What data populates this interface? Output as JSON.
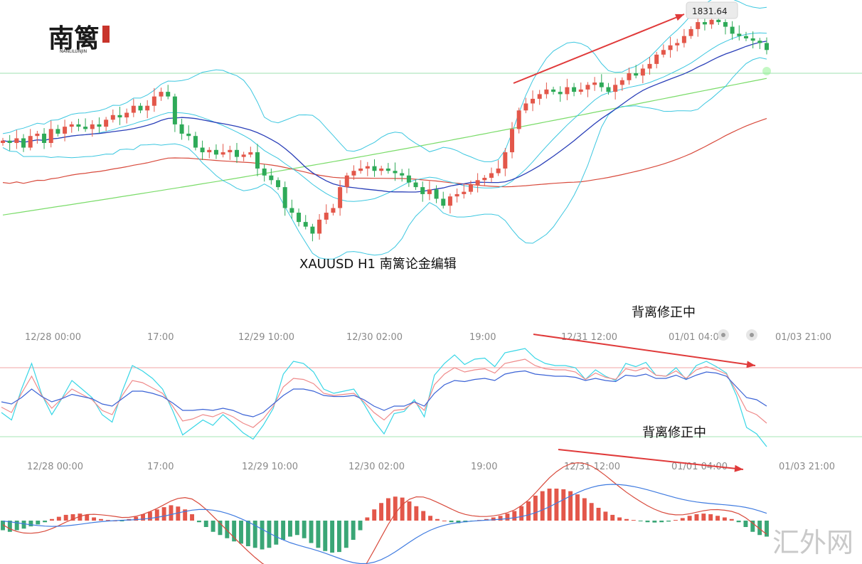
{
  "logo": {
    "mark": "南篱",
    "subtitle": "NANLILUNJIN"
  },
  "chart_title": "XAUUSD  H1  南篱论金编辑",
  "price_marker": "1831.64",
  "notes": {
    "rsi": "背离修正中",
    "macd": "背离修正中"
  },
  "watermark": "汇外网",
  "time_axis_rsi": [
    "12/28 00:00",
    "17:00",
    "12/29 10:00",
    "12/30 02:00",
    "19:00",
    "12/31 12:00",
    "01/01 04:00",
    "01/03 21:00"
  ],
  "time_axis_macd": [
    "12/28 00:00",
    "17:00",
    "12/29 10:00",
    "12/30 02:00",
    "19:00",
    "12/31 12:00",
    "01/01 04:00",
    "01/03 21:00"
  ],
  "colors": {
    "up": "#e3574a",
    "down": "#2eaa58",
    "boll": "#3cc7e0",
    "ma_blue": "#2a3fb8",
    "ma_red": "#d84a3c",
    "ma_green": "#7bdc6a",
    "hline": "#9fe0b2",
    "arrow": "#e03a3a",
    "macd_pos": "#e3574a",
    "macd_neg": "#3aa676",
    "rsi_cyan": "#37d6e6",
    "rsi_red": "#ef8a8a",
    "rsi_blue": "#3b63d6"
  },
  "chart_data": [
    {
      "type": "candlestick",
      "symbol": "XAUUSD",
      "timeframe": "H1",
      "annotation_price": 1831.64,
      "overlays": [
        "Bollinger Bands",
        "MA (blue)",
        "MA (red)",
        "MA (green)"
      ],
      "closes": [
        0.67,
        0.66,
        0.68,
        0.64,
        0.69,
        0.7,
        0.66,
        0.72,
        0.7,
        0.73,
        0.74,
        0.73,
        0.72,
        0.74,
        0.73,
        0.76,
        0.78,
        0.77,
        0.79,
        0.82,
        0.8,
        0.82,
        0.86,
        0.88,
        0.86,
        0.74,
        0.7,
        0.69,
        0.64,
        0.62,
        0.63,
        0.61,
        0.62,
        0.63,
        0.6,
        0.61,
        0.62,
        0.55,
        0.52,
        0.5,
        0.47,
        0.38,
        0.36,
        0.32,
        0.3,
        0.27,
        0.33,
        0.36,
        0.38,
        0.47,
        0.52,
        0.54,
        0.55,
        0.56,
        0.54,
        0.55,
        0.54,
        0.53,
        0.52,
        0.49,
        0.47,
        0.44,
        0.46,
        0.42,
        0.39,
        0.43,
        0.44,
        0.45,
        0.48,
        0.5,
        0.51,
        0.53,
        0.55,
        0.62,
        0.72,
        0.8,
        0.83,
        0.85,
        0.87,
        0.89,
        0.88,
        0.87,
        0.9,
        0.88,
        0.89,
        0.91,
        0.92,
        0.9,
        0.88,
        0.91,
        0.93,
        0.96,
        0.95,
        0.98,
        1.0,
        1.04,
        1.06,
        1.08,
        1.09,
        1.12,
        1.15,
        1.18,
        1.17,
        1.19,
        1.18,
        1.16,
        1.13,
        1.12,
        1.11,
        1.1,
        1.09,
        1.06
      ],
      "y_range": "relative (unlabeled axis)"
    },
    {
      "type": "line",
      "indicator": "RSI-style oscillator",
      "series": [
        {
          "values": [
            0.4,
            0.33,
            0.62,
            0.86,
            0.57,
            0.38,
            0.53,
            0.7,
            0.62,
            0.54,
            0.38,
            0.31,
            0.6,
            0.84,
            0.79,
            0.72,
            0.62,
            0.42,
            0.19,
            0.26,
            0.33,
            0.28,
            0.38,
            0.3,
            0.21,
            0.15,
            0.28,
            0.44,
            0.76,
            0.88,
            0.86,
            0.78,
            0.62,
            0.58,
            0.6,
            0.62,
            0.48,
            0.32,
            0.2,
            0.39,
            0.41,
            0.52,
            0.36,
            0.75,
            0.86,
            0.94,
            0.85,
            0.9,
            0.91,
            0.83,
            0.96,
            0.98,
            1.0,
            0.91,
            0.86,
            0.84,
            0.84,
            0.82,
            0.71,
            0.8,
            0.74,
            0.7,
            0.86,
            0.83,
            0.87,
            0.75,
            0.74,
            0.82,
            0.71,
            0.84,
            0.88,
            0.83,
            0.77,
            0.56,
            0.26,
            0.2,
            0.08
          ]
        },
        {
          "values": [
            0.45,
            0.4,
            0.58,
            0.74,
            0.56,
            0.44,
            0.53,
            0.62,
            0.57,
            0.52,
            0.42,
            0.38,
            0.56,
            0.7,
            0.68,
            0.63,
            0.58,
            0.46,
            0.32,
            0.34,
            0.38,
            0.36,
            0.4,
            0.36,
            0.3,
            0.26,
            0.34,
            0.46,
            0.64,
            0.72,
            0.71,
            0.67,
            0.58,
            0.56,
            0.57,
            0.58,
            0.5,
            0.4,
            0.33,
            0.42,
            0.43,
            0.5,
            0.42,
            0.66,
            0.76,
            0.82,
            0.78,
            0.8,
            0.81,
            0.77,
            0.86,
            0.88,
            0.9,
            0.84,
            0.81,
            0.8,
            0.8,
            0.78,
            0.71,
            0.77,
            0.73,
            0.71,
            0.81,
            0.79,
            0.82,
            0.75,
            0.74,
            0.79,
            0.72,
            0.8,
            0.83,
            0.8,
            0.76,
            0.6,
            0.42,
            0.38,
            0.3
          ]
        },
        {
          "values": [
            0.5,
            0.48,
            0.54,
            0.62,
            0.55,
            0.5,
            0.53,
            0.57,
            0.55,
            0.53,
            0.48,
            0.46,
            0.53,
            0.6,
            0.6,
            0.58,
            0.55,
            0.49,
            0.42,
            0.42,
            0.43,
            0.42,
            0.44,
            0.42,
            0.38,
            0.36,
            0.4,
            0.48,
            0.56,
            0.62,
            0.62,
            0.6,
            0.56,
            0.55,
            0.55,
            0.56,
            0.52,
            0.46,
            0.42,
            0.46,
            0.46,
            0.5,
            0.46,
            0.58,
            0.66,
            0.7,
            0.69,
            0.71,
            0.72,
            0.7,
            0.76,
            0.78,
            0.79,
            0.76,
            0.75,
            0.74,
            0.74,
            0.73,
            0.7,
            0.72,
            0.7,
            0.69,
            0.75,
            0.74,
            0.76,
            0.72,
            0.72,
            0.75,
            0.71,
            0.75,
            0.78,
            0.77,
            0.74,
            0.64,
            0.54,
            0.52,
            0.46
          ]
        }
      ]
    },
    {
      "type": "bar",
      "indicator": "MACD",
      "values": [
        -0.3,
        -0.35,
        -0.3,
        -0.25,
        -0.18,
        -0.12,
        -0.05,
        0.05,
        0.12,
        0.18,
        0.2,
        0.22,
        0.18,
        0.1,
        0.05,
        0.02,
        0.0,
        -0.02,
        0.05,
        0.12,
        0.2,
        0.28,
        0.35,
        0.42,
        0.48,
        0.44,
        0.35,
        0.2,
        -0.05,
        -0.2,
        -0.35,
        -0.45,
        -0.55,
        -0.65,
        -0.72,
        -0.8,
        -0.85,
        -0.9,
        -0.85,
        -0.75,
        -0.6,
        -0.5,
        -0.45,
        -0.55,
        -0.7,
        -0.85,
        -0.95,
        -1.0,
        -0.98,
        -0.85,
        -0.6,
        -0.3,
        0.1,
        0.35,
        0.55,
        0.7,
        0.75,
        0.72,
        0.6,
        0.45,
        0.3,
        0.15,
        0.05,
        0.0,
        -0.05,
        -0.08,
        -0.05,
        -0.02,
        0.02,
        0.05,
        0.1,
        0.15,
        0.22,
        0.3,
        0.45,
        0.6,
        0.78,
        0.92,
        1.0,
        1.0,
        0.98,
        0.92,
        0.82,
        0.7,
        0.55,
        0.4,
        0.28,
        0.18,
        0.1,
        0.05,
        0.02,
        -0.02,
        -0.05,
        -0.06,
        -0.05,
        -0.03,
        0.02,
        0.08,
        0.15,
        0.2,
        0.22,
        0.2,
        0.15,
        0.1,
        0.05,
        -0.05,
        -0.2,
        -0.35,
        -0.45,
        -0.5
      ]
    }
  ]
}
